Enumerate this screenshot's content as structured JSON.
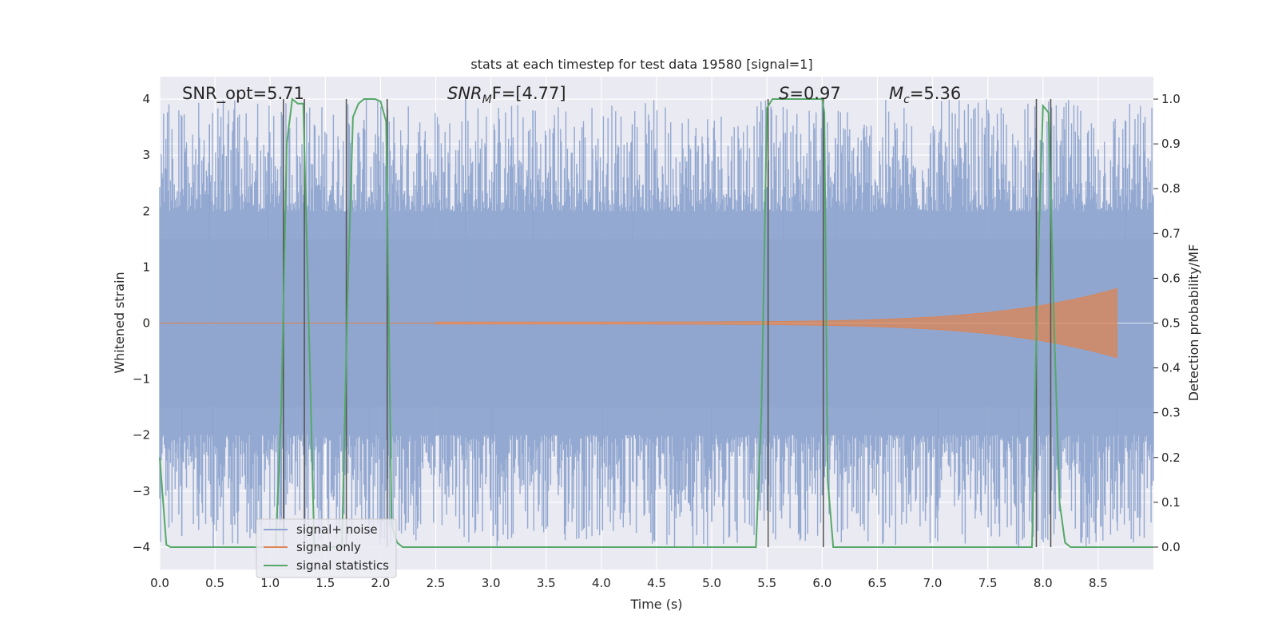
{
  "chart_data": {
    "type": "line",
    "title": "stats at each timestep for test data 19580 [signal=1]",
    "xlabel": "Time (s)",
    "ylabel": "Whitened strain",
    "y2label": "Detection probability/MF",
    "xlim": [
      0,
      9.0
    ],
    "ylim": [
      -4.4,
      4.4
    ],
    "y2lim": [
      -0.05,
      1.05
    ],
    "xticks": [
      0.0,
      0.5,
      1.0,
      1.5,
      2.0,
      2.5,
      3.0,
      3.5,
      4.0,
      4.5,
      5.0,
      5.5,
      6.0,
      6.5,
      7.0,
      7.5,
      8.0,
      8.5
    ],
    "yticks": [
      -4,
      -3,
      -2,
      -1,
      0,
      1,
      2,
      3,
      4
    ],
    "y2ticks": [
      0.0,
      0.1,
      0.2,
      0.3,
      0.4,
      0.5,
      0.6,
      0.7,
      0.8,
      0.9,
      1.0
    ],
    "grid": true,
    "legend_position": "lower-left",
    "annotations": {
      "snr_opt": "SNR_opt=5.71",
      "snr_mf_prefix": "SNR",
      "snr_mf_sub": "M",
      "snr_mf_rest": "F=[4.77]",
      "s_label": "S",
      "s_value": "=0.97",
      "mc_label": "M",
      "mc_sub": "c",
      "mc_value": "=5.36"
    },
    "series": [
      {
        "name": "signal+ noise",
        "color": "#8fa5cf",
        "kind": "noise",
        "x_range": [
          0.0,
          9.0
        ],
        "band_abs": 1.5,
        "peak_range": [
          2.0,
          4.0
        ],
        "spikes": [
          [
            0.45,
            3.55
          ],
          [
            0.98,
            3.05
          ],
          [
            1.31,
            3.35
          ],
          [
            2.77,
            4.0
          ],
          [
            3.38,
            3.8
          ],
          [
            4.28,
            3.55
          ],
          [
            5.65,
            3.4
          ],
          [
            6.12,
            3.3
          ],
          [
            8.75,
            3.6
          ],
          [
            0.2,
            -3.8
          ],
          [
            0.48,
            -3.55
          ],
          [
            1.9,
            -3.8
          ],
          [
            3.0,
            -3.35
          ],
          [
            3.02,
            -3.8
          ],
          [
            4.01,
            -3.7
          ],
          [
            5.0,
            -3.55
          ],
          [
            7.05,
            -3.35
          ],
          [
            7.78,
            -4.0
          ],
          [
            8.67,
            -3.55
          ]
        ]
      },
      {
        "name": "signal only",
        "color": "#dd8452",
        "kind": "chirp",
        "t_start": 2.5,
        "t_merge": 8.67,
        "amp_start": 0.02,
        "amp_merge": 0.62
      },
      {
        "name": "signal statistics",
        "color": "#55a868",
        "kind": "probability",
        "x": [
          0.0,
          0.06,
          0.1,
          0.15,
          0.5,
          0.8,
          1.0,
          1.05,
          1.1,
          1.15,
          1.2,
          1.25,
          1.3,
          1.34,
          1.4,
          1.45,
          1.5,
          1.55,
          1.6,
          1.65,
          1.7,
          1.75,
          1.8,
          1.85,
          1.9,
          1.95,
          2.0,
          2.05,
          2.1,
          2.15,
          2.2,
          2.5,
          3.0,
          4.0,
          5.0,
          5.4,
          5.45,
          5.5,
          5.55,
          5.6,
          5.8,
          6.0,
          6.02,
          6.05,
          6.1,
          6.5,
          7.0,
          7.5,
          7.85,
          7.9,
          7.95,
          8.0,
          8.05,
          8.1,
          8.15,
          8.2,
          8.25,
          8.3,
          8.5,
          8.8,
          9.0
        ],
        "y": [
          0.2,
          0.005,
          0.0,
          0.0,
          0.0,
          0.0,
          0.0,
          0.0,
          0.3,
          0.9,
          1.0,
          0.99,
          0.99,
          0.6,
          0.0,
          0.0,
          0.0,
          0.0,
          0.0,
          0.0,
          0.55,
          0.96,
          0.99,
          1.0,
          1.0,
          1.0,
          0.995,
          0.95,
          0.05,
          0.01,
          0.0,
          0.0,
          0.0,
          0.0,
          0.0,
          0.0,
          0.3,
          0.98,
          1.0,
          1.0,
          1.0,
          1.0,
          0.97,
          0.15,
          0.0,
          0.0,
          0.0,
          0.0,
          0.0,
          0.0,
          0.6,
          0.985,
          0.97,
          0.5,
          0.1,
          0.01,
          0.0,
          0.0,
          0.0,
          0.0,
          0.0
        ]
      }
    ],
    "vlines": [
      1.12,
      1.31,
      1.69,
      2.06,
      5.51,
      6.01,
      7.94,
      8.07
    ]
  }
}
